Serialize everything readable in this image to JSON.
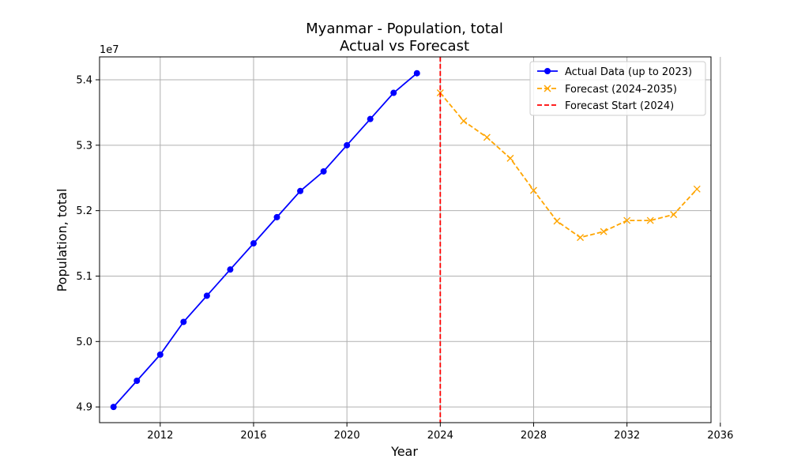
{
  "chart_data": {
    "type": "line",
    "title": "Myanmar - Population, total",
    "subtitle": "Actual vs Forecast",
    "xlabel": "Year",
    "ylabel": "Population, total",
    "y_scale_label": "1e7",
    "xlim": [
      2009.4,
      2035.6
    ],
    "ylim": [
      48760000,
      54350000
    ],
    "x_ticks": [
      2012,
      2016,
      2020,
      2024,
      2028,
      2032,
      2036
    ],
    "y_ticks": [
      4.9,
      5.0,
      5.1,
      5.2,
      5.3,
      5.4
    ],
    "y_tick_multiplier": 10000000,
    "grid": true,
    "legend_position": "top-right",
    "series": [
      {
        "name": "Actual Data (up to 2023)",
        "color": "#0000ff",
        "line_style": "solid",
        "marker": "circle",
        "x": [
          2010,
          2011,
          2012,
          2013,
          2014,
          2015,
          2016,
          2017,
          2018,
          2019,
          2020,
          2021,
          2022,
          2023
        ],
        "y": [
          49000000,
          49400000,
          49800000,
          50300000,
          50700000,
          51100000,
          51500000,
          51900000,
          52300000,
          52600000,
          53000000,
          53400000,
          53800000,
          54100000
        ]
      },
      {
        "name": "Forecast (2024–2035)",
        "color": "#ffa500",
        "line_style": "dashed",
        "marker": "x",
        "x": [
          2024,
          2025,
          2026,
          2027,
          2028,
          2029,
          2030,
          2031,
          2032,
          2033,
          2034,
          2035
        ],
        "y": [
          53800000,
          53370000,
          53120000,
          52800000,
          52310000,
          51840000,
          51590000,
          51680000,
          51850000,
          51850000,
          51940000,
          52330000
        ]
      }
    ],
    "vlines": [
      {
        "name": "Forecast Start (2024)",
        "x": 2024,
        "color": "#ff0000",
        "line_style": "dashed"
      }
    ]
  }
}
